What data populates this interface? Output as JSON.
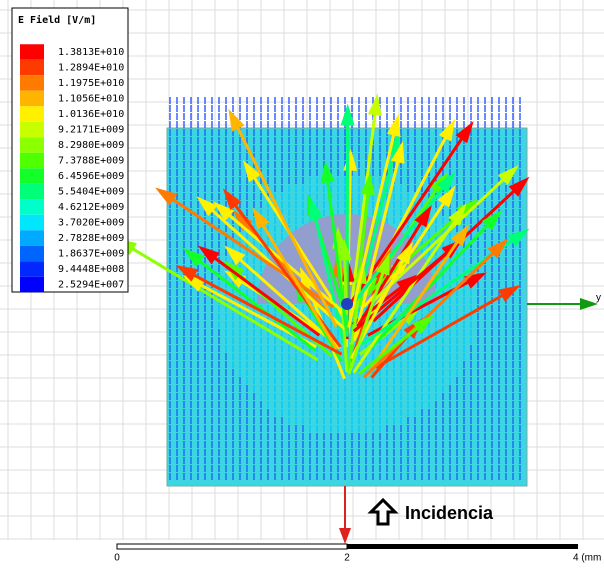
{
  "legend": {
    "title": "E Field [V/m]",
    "entries": [
      {
        "label": "1.3813E+010",
        "color": "#ff0000"
      },
      {
        "label": "1.2894E+010",
        "color": "#ff3a00"
      },
      {
        "label": "1.1975E+010",
        "color": "#ff7a00"
      },
      {
        "label": "1.1056E+010",
        "color": "#ffb400"
      },
      {
        "label": "1.0136E+010",
        "color": "#fff000"
      },
      {
        "label": "9.2171E+009",
        "color": "#c8ff00"
      },
      {
        "label": "8.2980E+009",
        "color": "#8cff00"
      },
      {
        "label": "7.3788E+009",
        "color": "#50ff00"
      },
      {
        "label": "6.4596E+009",
        "color": "#14ff28"
      },
      {
        "label": "5.5404E+009",
        "color": "#00ff78"
      },
      {
        "label": "4.6212E+009",
        "color": "#00ffc8"
      },
      {
        "label": "3.7020E+009",
        "color": "#00e6ff"
      },
      {
        "label": "2.7828E+009",
        "color": "#00aaff"
      },
      {
        "label": "1.8637E+009",
        "color": "#0064ff"
      },
      {
        "label": "9.4448E+008",
        "color": "#0028ff"
      },
      {
        "label": "2.5294E+007",
        "color": "#0000ff"
      }
    ]
  },
  "axis_label": "y",
  "annotation": "Incidencia",
  "scale_bar": {
    "labels": [
      "0",
      "2",
      "4 (mm"
    ]
  }
}
